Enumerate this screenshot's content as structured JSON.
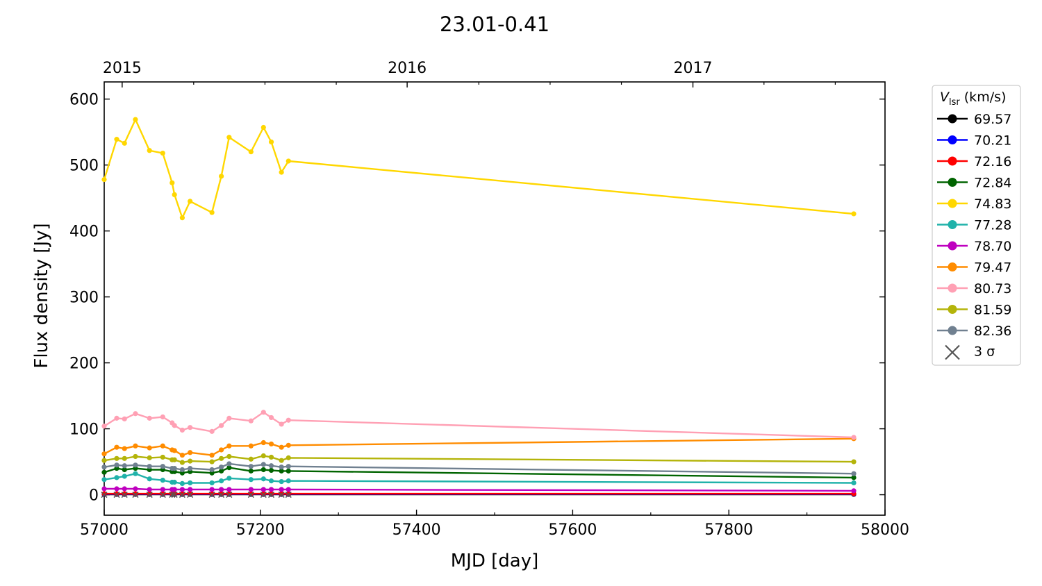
{
  "chart_data": {
    "type": "line",
    "title": "23.01-0.41",
    "xlabel": "MJD [day]",
    "ylabel": "Flux density [Jy]",
    "xlim": [
      57000,
      58000
    ],
    "ylim": [
      -31,
      626
    ],
    "x_ticks": [
      57000,
      57200,
      57400,
      57600,
      57800,
      58000
    ],
    "x_tick_labels": [
      "57000",
      "57200",
      "57400",
      "57600",
      "57800",
      "58000"
    ],
    "y_ticks": [
      0,
      100,
      200,
      300,
      400,
      500,
      600
    ],
    "y_tick_labels": [
      "0",
      "100",
      "200",
      "300",
      "400",
      "500",
      "600"
    ],
    "top_axis_ticks": [
      57023,
      57388,
      57754
    ],
    "top_axis_labels": [
      "2015",
      "2016",
      "2017"
    ],
    "legend_title_main": "V",
    "legend_title_sub": "lsr",
    "legend_title_unit": " (km/s)",
    "legend_placement": "outside-right",
    "grid": false,
    "x": [
      57000,
      57016,
      57026,
      57040,
      57058,
      57075,
      57087,
      57090,
      57100,
      57110,
      57138,
      57150,
      57160,
      57188,
      57204,
      57214,
      57227,
      57236,
      57960
    ],
    "series": [
      {
        "name": "69.57",
        "color": "#000000",
        "values": [
          0.5,
          0.5,
          0.5,
          0.5,
          0.5,
          0.5,
          0.5,
          0.5,
          0.5,
          0.5,
          0.5,
          0.5,
          0.5,
          0.5,
          0.5,
          0.5,
          0.5,
          0.5,
          0.5
        ]
      },
      {
        "name": "70.21",
        "color": "#0000ff",
        "values": [
          1,
          1,
          1,
          1,
          1,
          1,
          1,
          1,
          1,
          1,
          1,
          1,
          1,
          1,
          1,
          1,
          1,
          1,
          1
        ]
      },
      {
        "name": "72.16",
        "color": "#ff0000",
        "values": [
          1.5,
          1.5,
          1.5,
          1.5,
          1.5,
          1.5,
          1.5,
          1.5,
          1.5,
          1.5,
          1.5,
          1.5,
          1.5,
          1.5,
          1.5,
          1.5,
          1.5,
          1.5,
          1.5
        ]
      },
      {
        "name": "72.84",
        "color": "#006400",
        "values": [
          34,
          40,
          38,
          40,
          38,
          38,
          35,
          35,
          33,
          35,
          33,
          36,
          41,
          36,
          38,
          37,
          36,
          36,
          26
        ]
      },
      {
        "name": "74.83",
        "color": "#ffd700",
        "values": [
          478,
          539,
          533,
          569,
          522,
          518,
          473,
          455,
          420,
          445,
          428,
          483,
          542,
          520,
          557,
          535,
          489,
          506,
          426
        ]
      },
      {
        "name": "77.28",
        "color": "#20b2aa",
        "values": [
          23,
          26,
          28,
          32,
          24,
          22,
          19,
          19,
          17,
          18,
          18,
          21,
          25,
          23,
          24,
          21,
          20,
          21,
          18
        ]
      },
      {
        "name": "78.70",
        "color": "#bf00bf",
        "values": [
          9,
          9,
          9,
          9,
          8,
          8,
          8,
          8,
          8,
          8,
          8,
          8,
          8,
          8,
          8,
          8,
          8,
          8,
          6
        ]
      },
      {
        "name": "79.47",
        "color": "#ff8c00",
        "values": [
          62,
          72,
          70,
          74,
          71,
          74,
          68,
          67,
          60,
          64,
          60,
          68,
          74,
          74,
          79,
          77,
          72,
          75,
          85
        ]
      },
      {
        "name": "80.73",
        "color": "#ffa0b4",
        "values": [
          104,
          116,
          115,
          123,
          116,
          118,
          109,
          105,
          98,
          102,
          96,
          105,
          116,
          112,
          125,
          117,
          107,
          113,
          87
        ]
      },
      {
        "name": "81.59",
        "color": "#b4b40a",
        "values": [
          52,
          55,
          55,
          58,
          56,
          57,
          53,
          53,
          49,
          51,
          50,
          55,
          58,
          54,
          59,
          57,
          52,
          56,
          50
        ]
      },
      {
        "name": "82.36",
        "color": "#708090",
        "values": [
          42,
          45,
          44,
          45,
          43,
          43,
          40,
          40,
          38,
          40,
          38,
          42,
          47,
          43,
          46,
          44,
          42,
          43,
          32
        ]
      }
    ],
    "sigma_legend_label": "3 σ",
    "sigma_x": [
      57000,
      57016,
      57026,
      57040,
      57058,
      57075,
      57087,
      57090,
      57100,
      57110,
      57138,
      57150,
      57160,
      57188,
      57204,
      57214,
      57227,
      57236
    ],
    "sigma_value": 0
  }
}
